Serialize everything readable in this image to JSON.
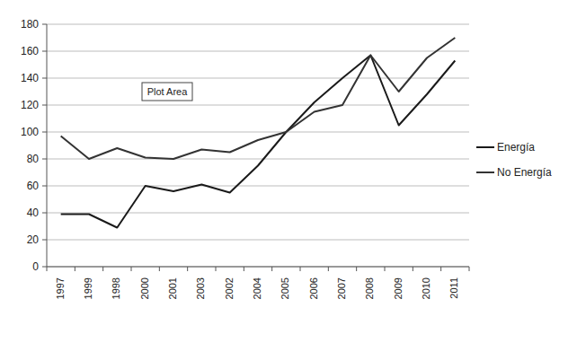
{
  "chart_data": {
    "type": "line",
    "annotations": [
      "Plot Area"
    ],
    "categories": [
      "1997",
      "1999",
      "1998",
      "2000",
      "2001",
      "2003",
      "2002",
      "2004",
      "2005",
      "2006",
      "2007",
      "2008",
      "2009",
      "2010",
      "2011"
    ],
    "series": [
      {
        "name": "Energía",
        "color": "#1a1a1a",
        "values": [
          39,
          39,
          29,
          60,
          56,
          61,
          55,
          75,
          100,
          122,
          140,
          157,
          105,
          128,
          153
        ]
      },
      {
        "name": "No Energía",
        "color": "#333333",
        "values": [
          97,
          80,
          88,
          81,
          80,
          87,
          85,
          94,
          100,
          115,
          120,
          157,
          130,
          155,
          170
        ]
      }
    ],
    "ylim": [
      0,
      180
    ],
    "yticks": [
      0,
      20,
      40,
      60,
      80,
      100,
      120,
      140,
      160,
      180
    ],
    "grid": true,
    "legend": "right"
  }
}
